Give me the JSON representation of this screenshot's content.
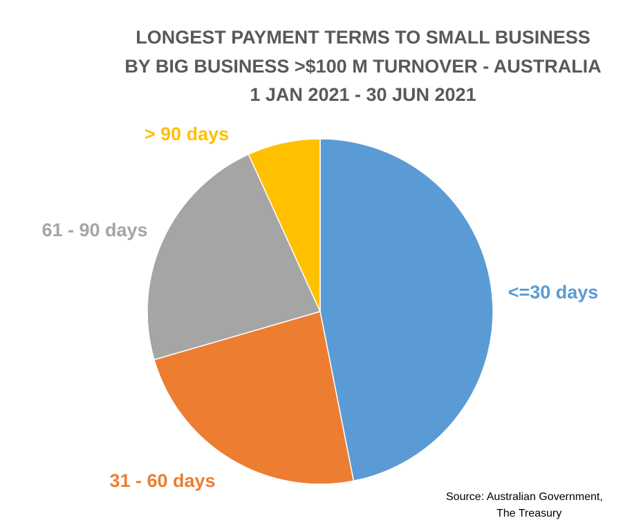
{
  "chart_data": {
    "type": "pie",
    "title": [
      "LONGEST PAYMENT TERMS TO SMALL BUSINESS",
      "BY BIG BUSINESS >$100 M TURNOVER - AUSTRALIA",
      "1 JAN 2021 - 30 JUN 2021"
    ],
    "categories": [
      "<=30 days",
      "31 - 60  days",
      "61 - 90 days",
      "> 90 days"
    ],
    "values": [
      46.9,
      23.6,
      22.7,
      6.8
    ],
    "colors": [
      "#5b9bd5",
      "#ed7d31",
      "#a5a5a5",
      "#ffc000"
    ],
    "source": [
      "Source:  Australian Government,",
      "The Treasury"
    ]
  }
}
